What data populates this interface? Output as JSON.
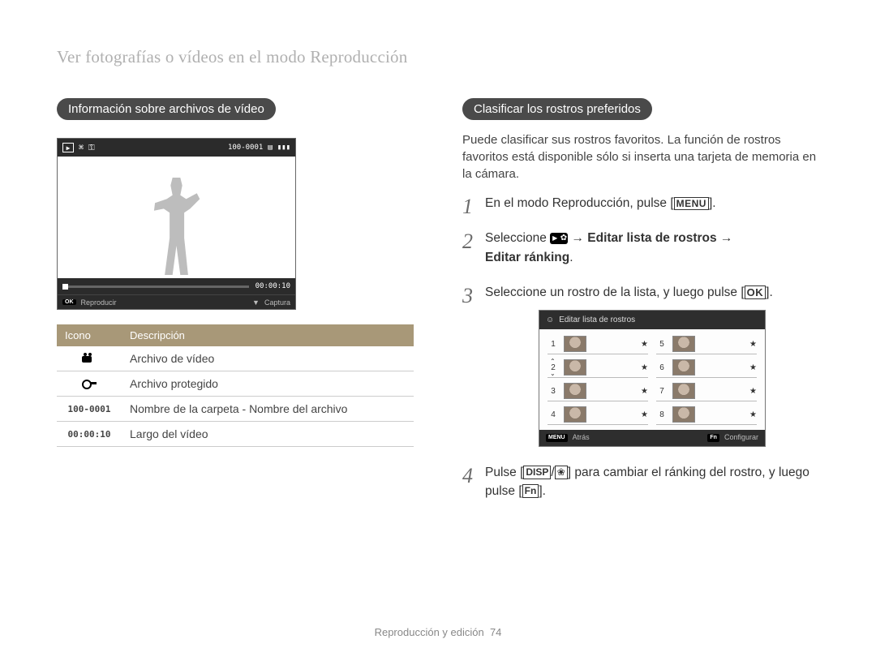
{
  "header": "Ver fotografías o vídeos en el modo Reproducción",
  "left": {
    "pill": "Información sobre archivos de vídeo",
    "preview": {
      "folder_file": "100-0001",
      "time": "00:00:10",
      "ok_label": "OK",
      "play_label": "Reproducir",
      "down_label": "▼",
      "capture_label": "Captura"
    },
    "table": {
      "head_icon": "Icono",
      "head_desc": "Descripción",
      "rows": [
        {
          "icon_type": "camcorder",
          "icon_text": "",
          "desc": "Archivo de vídeo"
        },
        {
          "icon_type": "key",
          "icon_text": "",
          "desc": "Archivo protegido"
        },
        {
          "icon_type": "mono",
          "icon_text": "100-0001",
          "desc": "Nombre de la carpeta - Nombre del archivo"
        },
        {
          "icon_type": "mono",
          "icon_text": "00:00:10",
          "desc": "Largo del vídeo"
        }
      ]
    }
  },
  "right": {
    "pill": "Clasificar los rostros preferidos",
    "intro": "Puede clasificar sus rostros favoritos. La función de rostros favoritos está disponible sólo si inserta una tarjeta de memoria en la cámara.",
    "steps": {
      "s1_a": "En el modo Reproducción, pulse [",
      "s1_btn": "MENU",
      "s1_b": "].",
      "s2_a": "Seleccione ",
      "s2_arrow1": " → ",
      "s2_bold1": "Editar lista de rostros",
      "s2_arrow2": " → ",
      "s2_bold2": "Editar ránking",
      "s2_end": ".",
      "s3_a": "Seleccione un rostro de la lista, y luego pulse [",
      "s3_btn": "OK",
      "s3_b": "].",
      "s4_a": "Pulse [",
      "s4_btn1": "DISP",
      "s4_slash": "/",
      "s4_btn2": "❀",
      "s4_b": "] para cambiar el ránking del rostro, y luego pulse [",
      "s4_btn3": "Fn",
      "s4_c": "]."
    },
    "face_screen": {
      "title": "Editar lista de rostros",
      "back_btn": "MENU",
      "back_label": "Atrás",
      "conf_btn": "Fn",
      "conf_label": "Configurar",
      "numbers": [
        "1",
        "2",
        "3",
        "4",
        "5",
        "6",
        "7",
        "8"
      ]
    }
  },
  "footer_a": "Reproducción y edición",
  "footer_b": "74"
}
